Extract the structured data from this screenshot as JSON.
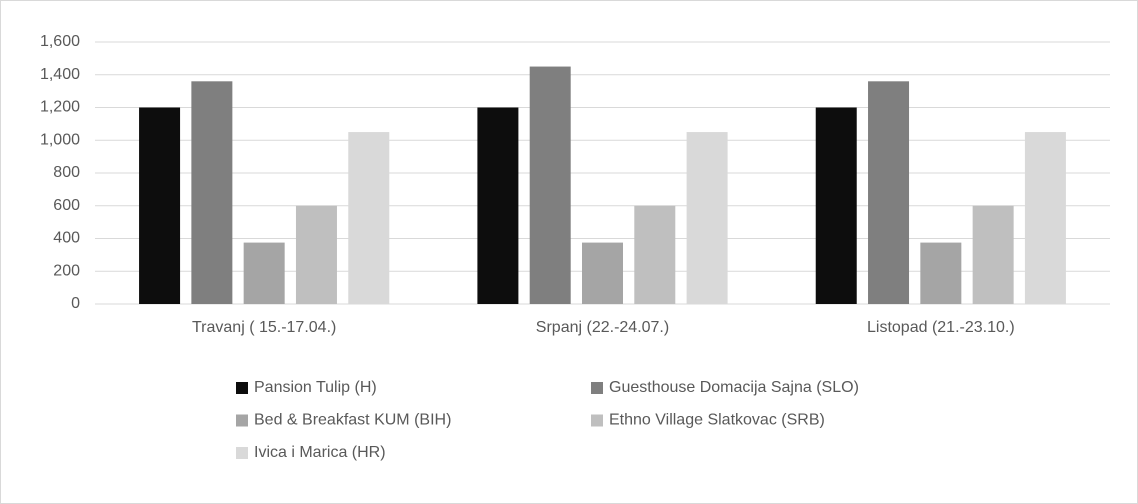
{
  "chart_data": {
    "type": "bar",
    "categories": [
      "Travanj ( 15.-17.04.)",
      "Srpanj (22.-24.07.)",
      "Listopad (21.-23.10.)"
    ],
    "series": [
      {
        "name": "Pansion Tulip (H)",
        "color": "#0d0d0d",
        "values": [
          1200,
          1200,
          1200
        ]
      },
      {
        "name": "Guesthouse Domacija Sajna (SLO)",
        "color": "#7f7f7f",
        "values": [
          1360,
          1450,
          1360
        ]
      },
      {
        "name": "Bed & Breakfast KUM (BIH)",
        "color": "#a5a5a5",
        "values": [
          375,
          375,
          375
        ]
      },
      {
        "name": "Ethno Village Slatkovac (SRB)",
        "color": "#bfbfbf",
        "values": [
          600,
          600,
          600
        ]
      },
      {
        "name": "Ivica i Marica (HR)",
        "color": "#d9d9d9",
        "values": [
          1050,
          1050,
          1050
        ]
      }
    ],
    "ylim": [
      0,
      1600
    ],
    "yticks": [
      0,
      200,
      400,
      600,
      800,
      {
        "value": 1000,
        "label": "1,000"
      },
      {
        "value": 1200,
        "label": "1,200"
      },
      {
        "value": 1400,
        "label": "1,400"
      },
      {
        "value": 1600,
        "label": "1,600"
      }
    ],
    "grid": true,
    "legend": "bottom"
  }
}
